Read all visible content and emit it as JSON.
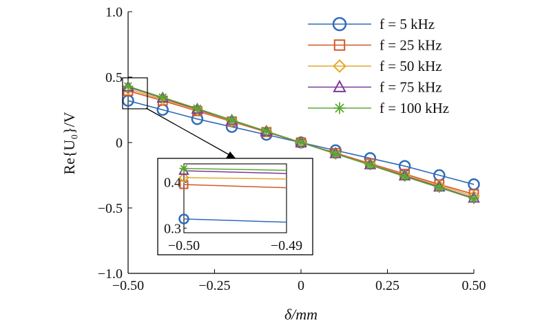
{
  "chart_data": {
    "type": "line",
    "title": "",
    "xlabel": "δ/mm",
    "ylabel": "Re{U₀}/V",
    "xlim": [
      -0.5,
      0.5
    ],
    "ylim": [
      -1.0,
      1.0
    ],
    "xticks": [
      -0.5,
      -0.25,
      0,
      0.25,
      0.5
    ],
    "xtick_labels": [
      "−0.50",
      "−0.25",
      "0",
      "0.25",
      "0.50"
    ],
    "yticks": [
      -1.0,
      -0.5,
      0,
      0.5,
      1.0
    ],
    "ytick_labels": [
      "−1.0",
      "−0.5",
      "0",
      "0.5",
      "1.0"
    ],
    "grid": false,
    "legend_position": "top-right",
    "x": [
      -0.5,
      -0.4,
      -0.3,
      -0.2,
      -0.1,
      0,
      0.1,
      0.2,
      0.3,
      0.4,
      0.5
    ],
    "series": [
      {
        "name": "f = 5 kHz",
        "color": "#2e6bb7",
        "marker": "circle",
        "values": [
          0.32,
          0.25,
          0.18,
          0.12,
          0.06,
          0,
          -0.06,
          -0.12,
          -0.18,
          -0.25,
          -0.32
        ]
      },
      {
        "name": "f = 25 kHz",
        "color": "#d4572a",
        "marker": "square",
        "values": [
          0.395,
          0.32,
          0.24,
          0.16,
          0.08,
          0,
          -0.08,
          -0.16,
          -0.24,
          -0.32,
          -0.395
        ]
      },
      {
        "name": "f = 50 kHz",
        "color": "#e3a82b",
        "marker": "diamond",
        "values": [
          0.41,
          0.33,
          0.25,
          0.165,
          0.085,
          0,
          -0.085,
          -0.165,
          -0.25,
          -0.33,
          -0.41
        ]
      },
      {
        "name": "f = 75 kHz",
        "color": "#7a3a9a",
        "marker": "triangle",
        "values": [
          0.425,
          0.34,
          0.255,
          0.17,
          0.085,
          0,
          -0.085,
          -0.17,
          -0.255,
          -0.34,
          -0.425
        ]
      },
      {
        "name": "f = 100 kHz",
        "color": "#5aa832",
        "marker": "star",
        "values": [
          0.43,
          0.345,
          0.26,
          0.172,
          0.087,
          0,
          -0.087,
          -0.172,
          -0.26,
          -0.345,
          -0.43
        ]
      }
    ],
    "inset": {
      "xlim": [
        -0.5,
        -0.49
      ],
      "ylim": [
        0.29,
        0.44
      ],
      "xtick_labels": [
        "−0.50",
        "−0.49"
      ],
      "ytick_labels": [
        "0.3",
        "0.4"
      ],
      "x": [
        -0.5,
        -0.49
      ],
      "series_values": [
        [
          0.32,
          0.313
        ],
        [
          0.395,
          0.388
        ],
        [
          0.41,
          0.407
        ],
        [
          0.425,
          0.419
        ],
        [
          0.43,
          0.426
        ]
      ]
    }
  }
}
